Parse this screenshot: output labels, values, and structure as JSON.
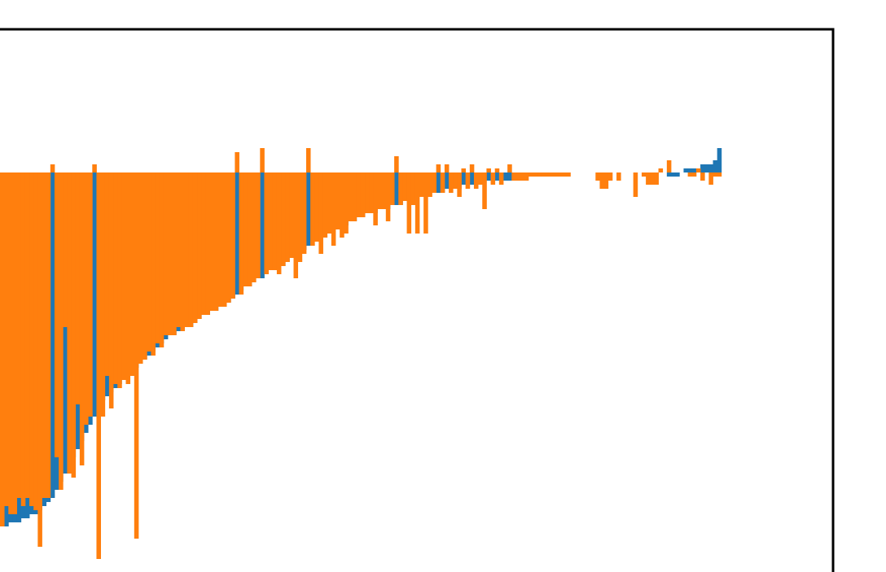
{
  "chart_data": {
    "type": "bar",
    "title": "",
    "xlabel": "",
    "ylabel": "",
    "grid": false,
    "legend": "none",
    "ylim": [
      -100,
      35
    ],
    "colors": [
      "#1f77b4",
      "#ff7f0e"
    ],
    "series": [
      {
        "name": "",
        "color": "#1f77b4",
        "values": [
          -87,
          -87,
          -86,
          -86,
          -86,
          -85,
          -85,
          -84,
          -84,
          -83,
          -82,
          -81,
          -80,
          -78,
          -76,
          -74,
          -72,
          -70,
          -68,
          -66,
          -64,
          -62,
          -60,
          -58,
          -56,
          -55,
          -54,
          -53,
          -52,
          -51,
          -50,
          -49,
          -48,
          -47,
          -46,
          -45,
          -44,
          -43,
          -42,
          -41,
          -40,
          -40,
          -39,
          -39,
          -38,
          -38,
          -37,
          -36,
          -35,
          -35,
          -34,
          -34,
          -33,
          -33,
          -32,
          -31,
          -30,
          -29,
          -28,
          -28,
          -27,
          -26,
          -26,
          -25,
          -24,
          -24,
          -23,
          -23,
          -22,
          -21,
          -21,
          -20,
          -19,
          -18,
          -17,
          -17,
          -16,
          -15,
          -15,
          -14,
          -14,
          -13,
          -13,
          -12,
          -12,
          -11,
          -11,
          -10,
          -10,
          -10,
          -9,
          -9,
          -9,
          -8,
          -8,
          -8,
          -7,
          -7,
          -7,
          -6,
          -6,
          -6,
          -5,
          -5,
          -5,
          -5,
          -4,
          -4,
          -4,
          -4,
          -3,
          -3,
          -3,
          -3,
          -3,
          -2,
          -2,
          -2,
          -2,
          -2,
          -2,
          -2,
          -1,
          -1,
          -1,
          -1,
          -1,
          -1,
          -1,
          -1,
          -1,
          -1,
          0,
          0,
          0,
          0,
          0,
          0,
          0,
          0,
          0,
          0,
          0,
          0,
          0,
          0,
          0,
          0,
          0,
          0,
          0,
          0,
          0,
          0,
          0,
          0,
          0,
          0,
          0,
          -1,
          -1,
          -1,
          0,
          1,
          1,
          1,
          1,
          2,
          2,
          2,
          3,
          6
        ]
      },
      {
        "name": "",
        "color": "#ff7f0e",
        "values": [
          -87,
          -82,
          -84,
          -84,
          -80,
          -82,
          -80,
          -82,
          -83,
          -92,
          -80,
          -80,
          2,
          -70,
          -78,
          -38,
          -74,
          -75,
          -57,
          -72,
          -62,
          -60,
          2,
          -95,
          -60,
          -50,
          -58,
          -52,
          -53,
          -51,
          -52,
          -50,
          -90,
          -47,
          -46,
          -44,
          -45,
          -42,
          -43,
          -40,
          -40,
          -40,
          -38,
          -39,
          -38,
          -38,
          -37,
          -36,
          -35,
          -35,
          -34,
          -34,
          -33,
          -33,
          -32,
          -31,
          5,
          -30,
          -28,
          -28,
          -27,
          -26,
          6,
          -25,
          -24,
          -24,
          -25,
          -23,
          -22,
          -21,
          -26,
          -22,
          -20,
          6,
          -18,
          -17,
          -20,
          -16,
          -15,
          -18,
          -14,
          -16,
          -15,
          -12,
          -12,
          -11,
          -11,
          -10,
          -10,
          -13,
          -9,
          -9,
          -12,
          -8,
          4,
          -8,
          -7,
          -15,
          -8,
          -15,
          -6,
          -15,
          -6,
          -5,
          2,
          -5,
          2,
          -5,
          -4,
          -6,
          1,
          -4,
          2,
          -4,
          -3,
          -9,
          1,
          -3,
          1,
          -3,
          0,
          2,
          -2,
          -2,
          -2,
          -2,
          -1,
          -1,
          -1,
          -1,
          -1,
          -1,
          -1,
          -1,
          -1,
          -1,
          0,
          0,
          0,
          0,
          0,
          0,
          -2,
          -4,
          -4,
          -2,
          0,
          -2,
          0,
          0,
          0,
          -6,
          0,
          -1,
          -3,
          -3,
          -3,
          1,
          0,
          3,
          0,
          0,
          0,
          0,
          -1,
          -1,
          1,
          -2,
          0,
          -3,
          -1,
          -1,
          0,
          0
        ]
      }
    ]
  }
}
